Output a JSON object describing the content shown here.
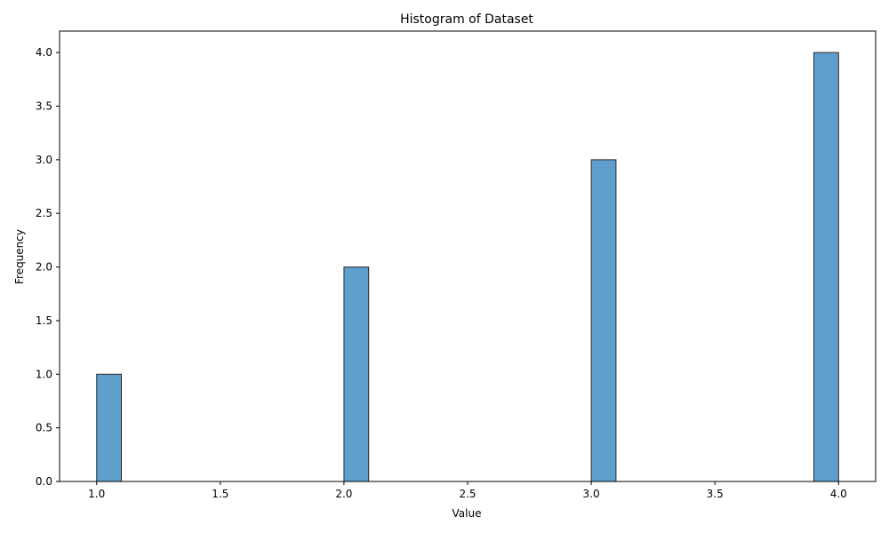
{
  "chart_data": {
    "type": "bar",
    "subtype": "histogram",
    "title": "Histogram of Dataset",
    "xlabel": "Value",
    "ylabel": "Frequency",
    "xlim": [
      0.85,
      4.15
    ],
    "ylim": [
      0,
      4.2
    ],
    "bins": [
      {
        "start": 1.0,
        "end": 1.1,
        "count": 1
      },
      {
        "start": 2.0,
        "end": 2.1,
        "count": 2
      },
      {
        "start": 3.0,
        "end": 3.1,
        "count": 3
      },
      {
        "start": 3.9,
        "end": 4.0,
        "count": 4
      }
    ],
    "xticks": [
      1.0,
      1.5,
      2.0,
      2.5,
      3.0,
      3.5,
      4.0
    ],
    "xtick_labels": [
      "1.0",
      "1.5",
      "2.0",
      "2.5",
      "3.0",
      "3.5",
      "4.0"
    ],
    "yticks": [
      0.0,
      0.5,
      1.0,
      1.5,
      2.0,
      2.5,
      3.0,
      3.5,
      4.0
    ],
    "ytick_labels": [
      "0.0",
      "0.5",
      "1.0",
      "1.5",
      "2.0",
      "2.5",
      "3.0",
      "3.5",
      "4.0"
    ],
    "grid": false,
    "colors": {
      "bar_fill": "#5f9fcd",
      "bar_edge": "#2b2b2b",
      "axis": "#000000"
    }
  }
}
